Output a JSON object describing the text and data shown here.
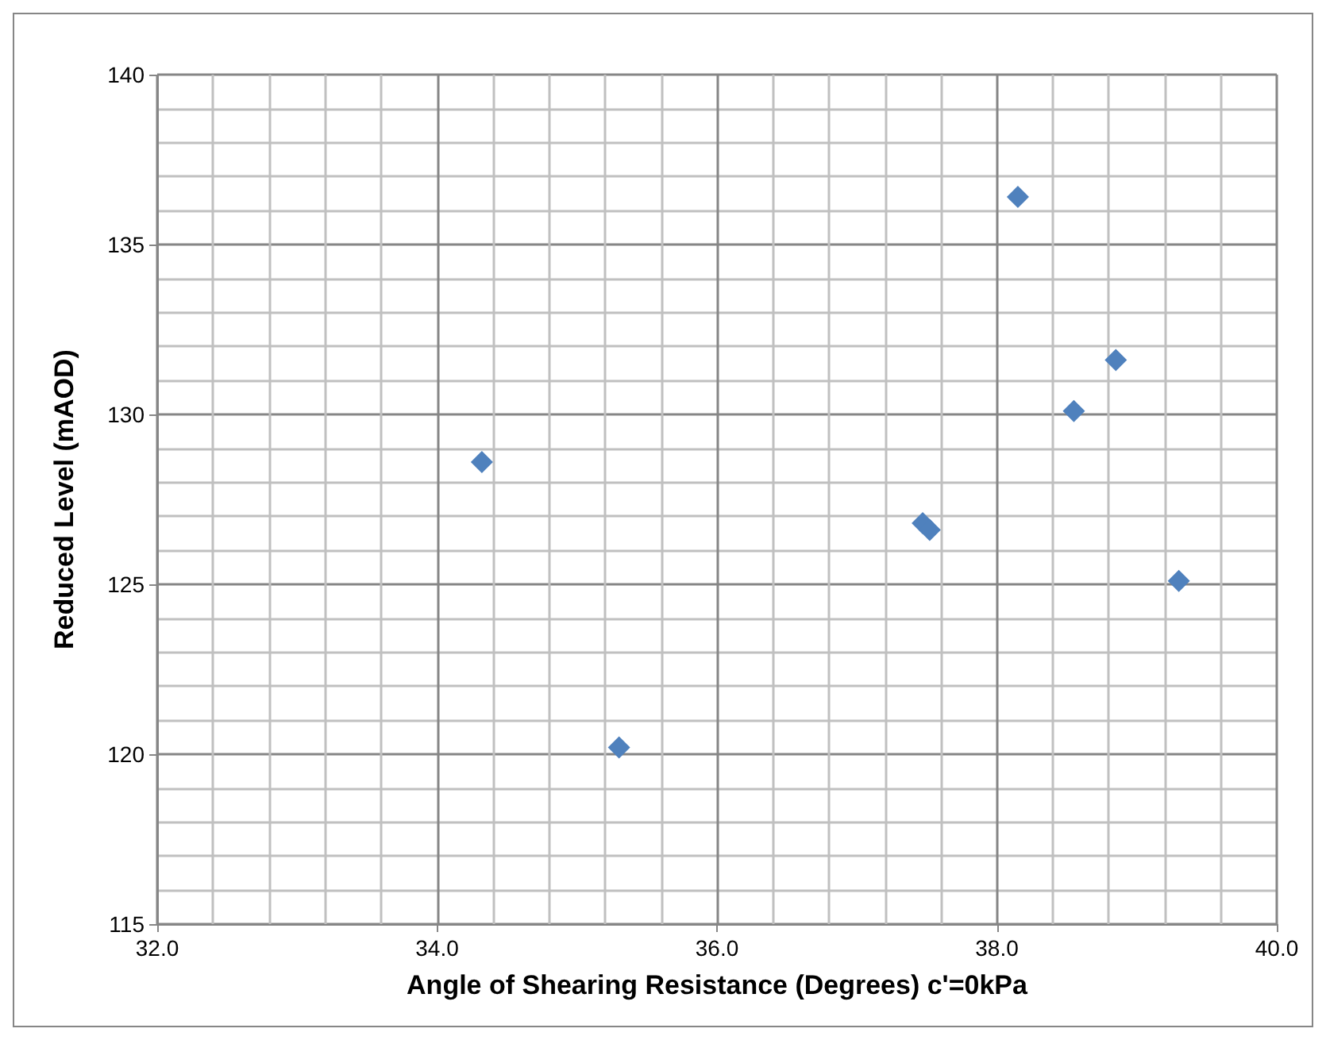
{
  "chart_data": {
    "type": "scatter",
    "xlabel": "Angle of Shearing Resistance (Degrees) c'=0kPa",
    "ylabel": "Reduced Level (mAOD)",
    "x": [
      34.32,
      35.3,
      38.15,
      37.47,
      37.52,
      38.55,
      38.85,
      39.3
    ],
    "series": [
      {
        "color": "#4f81bd",
        "values": [
          128.6,
          120.2,
          136.4,
          126.8,
          126.6,
          130.1,
          131.6,
          125.1
        ]
      }
    ],
    "xlim": [
      32,
      40
    ],
    "xticks": [
      {
        "value": 32,
        "label": "32.0"
      },
      {
        "value": 34,
        "label": "34.0"
      },
      {
        "value": 36,
        "label": "36.0"
      },
      {
        "value": 38,
        "label": "38.0"
      },
      {
        "value": 40,
        "label": "40.0"
      }
    ],
    "ylim": [
      115,
      140
    ],
    "yticks": [
      115,
      120,
      125,
      130,
      135,
      140
    ],
    "grid": true,
    "marker": "diamond"
  }
}
